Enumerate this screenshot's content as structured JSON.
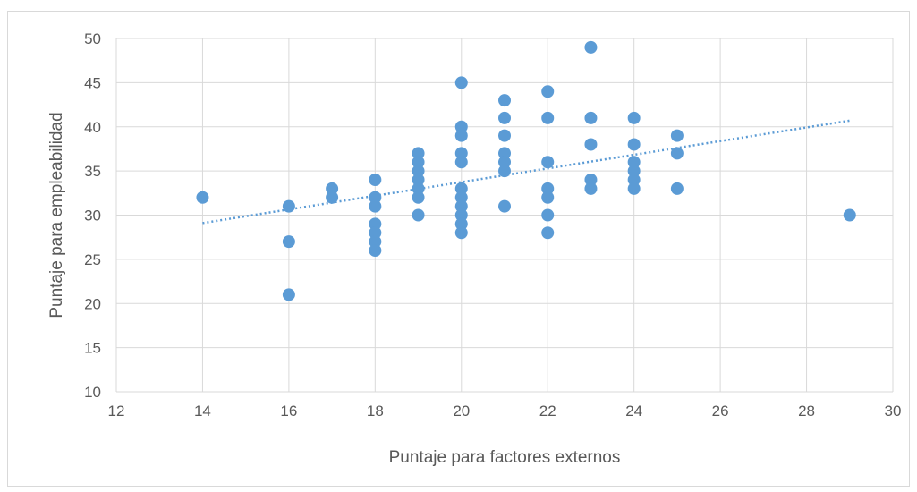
{
  "chart_data": {
    "type": "scatter",
    "title": "",
    "xlabel": "Puntaje para factores externos",
    "ylabel": "Puntaje para empleabilidad",
    "xlim": [
      12,
      30
    ],
    "ylim": [
      10,
      50
    ],
    "xticks": [
      12,
      14,
      16,
      18,
      20,
      22,
      24,
      26,
      28,
      30
    ],
    "yticks": [
      10,
      15,
      20,
      25,
      30,
      35,
      40,
      45,
      50
    ],
    "grid": true,
    "legend": "none",
    "colors": {
      "point": "#5b9bd5",
      "trend": "#5b9bd5",
      "grid": "#d9d9d9",
      "text": "#595959"
    },
    "trendline": {
      "style": "dotted",
      "x": [
        14,
        29
      ],
      "y": [
        29.1,
        40.7
      ]
    },
    "points": [
      {
        "x": 14,
        "y": 32
      },
      {
        "x": 16,
        "y": 31
      },
      {
        "x": 16,
        "y": 27
      },
      {
        "x": 16,
        "y": 21
      },
      {
        "x": 17,
        "y": 33
      },
      {
        "x": 17,
        "y": 32
      },
      {
        "x": 18,
        "y": 34
      },
      {
        "x": 18,
        "y": 32
      },
      {
        "x": 18,
        "y": 31
      },
      {
        "x": 18,
        "y": 29
      },
      {
        "x": 18,
        "y": 28
      },
      {
        "x": 18,
        "y": 27
      },
      {
        "x": 18,
        "y": 26
      },
      {
        "x": 19,
        "y": 37
      },
      {
        "x": 19,
        "y": 36
      },
      {
        "x": 19,
        "y": 35
      },
      {
        "x": 19,
        "y": 34
      },
      {
        "x": 19,
        "y": 33
      },
      {
        "x": 19,
        "y": 32
      },
      {
        "x": 19,
        "y": 30
      },
      {
        "x": 20,
        "y": 45
      },
      {
        "x": 20,
        "y": 40
      },
      {
        "x": 20,
        "y": 39
      },
      {
        "x": 20,
        "y": 37
      },
      {
        "x": 20,
        "y": 36
      },
      {
        "x": 20,
        "y": 33
      },
      {
        "x": 20,
        "y": 32
      },
      {
        "x": 20,
        "y": 31
      },
      {
        "x": 20,
        "y": 30
      },
      {
        "x": 20,
        "y": 29
      },
      {
        "x": 20,
        "y": 28
      },
      {
        "x": 21,
        "y": 43
      },
      {
        "x": 21,
        "y": 41
      },
      {
        "x": 21,
        "y": 39
      },
      {
        "x": 21,
        "y": 37
      },
      {
        "x": 21,
        "y": 36
      },
      {
        "x": 21,
        "y": 35
      },
      {
        "x": 21,
        "y": 31
      },
      {
        "x": 22,
        "y": 44
      },
      {
        "x": 22,
        "y": 41
      },
      {
        "x": 22,
        "y": 36
      },
      {
        "x": 22,
        "y": 33
      },
      {
        "x": 22,
        "y": 32
      },
      {
        "x": 22,
        "y": 30
      },
      {
        "x": 22,
        "y": 28
      },
      {
        "x": 23,
        "y": 49
      },
      {
        "x": 23,
        "y": 41
      },
      {
        "x": 23,
        "y": 38
      },
      {
        "x": 23,
        "y": 34
      },
      {
        "x": 23,
        "y": 33
      },
      {
        "x": 24,
        "y": 41
      },
      {
        "x": 24,
        "y": 38
      },
      {
        "x": 24,
        "y": 36
      },
      {
        "x": 24,
        "y": 35
      },
      {
        "x": 24,
        "y": 34
      },
      {
        "x": 24,
        "y": 33
      },
      {
        "x": 25,
        "y": 39
      },
      {
        "x": 25,
        "y": 37
      },
      {
        "x": 25,
        "y": 33
      },
      {
        "x": 29,
        "y": 30
      }
    ]
  }
}
